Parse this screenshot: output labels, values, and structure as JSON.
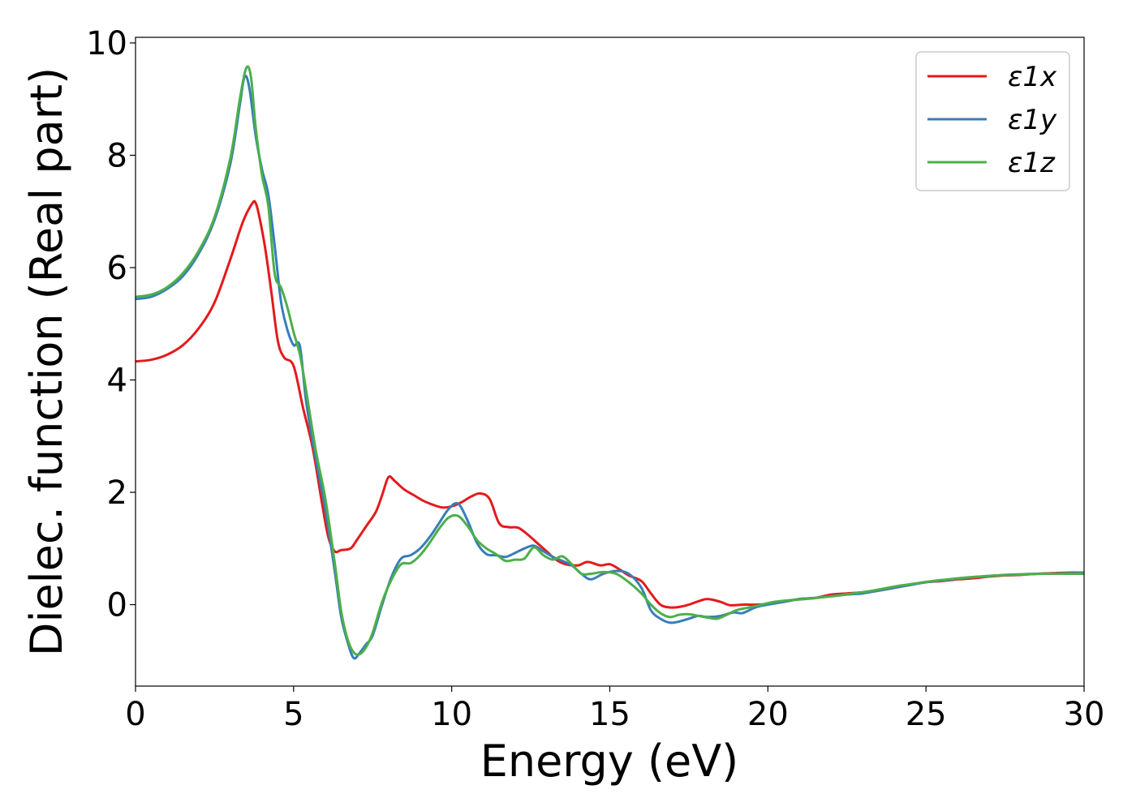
{
  "chart_data": {
    "type": "line",
    "xlabel": "Energy (eV)",
    "ylabel": "Dielec. function (Real part)",
    "xlim": [
      0,
      30
    ],
    "ylim": [
      -1.45,
      10.1
    ],
    "xticks": [
      0,
      5,
      10,
      15,
      20,
      25,
      30
    ],
    "yticks": [
      0,
      2,
      4,
      6,
      8,
      10
    ],
    "grid": false,
    "legend_position": "top-right",
    "series": [
      {
        "name": "ε1x",
        "color": "#e41a1c",
        "x": [
          0,
          0.5,
          1.0,
          1.5,
          2.0,
          2.5,
          3.0,
          3.4,
          3.7,
          3.8,
          3.9,
          4.1,
          4.3,
          4.5,
          4.7,
          5.0,
          5.3,
          5.6,
          5.9,
          6.1,
          6.3,
          6.5,
          6.8,
          7.0,
          7.3,
          7.6,
          7.8,
          8.0,
          8.2,
          8.5,
          8.8,
          9.1,
          9.4,
          9.7,
          10.0,
          10.3,
          10.6,
          10.9,
          11.2,
          11.5,
          11.8,
          12.1,
          12.4,
          12.7,
          13.0,
          13.3,
          13.6,
          14.0,
          14.3,
          14.7,
          15.0,
          15.3,
          15.6,
          16.0,
          16.3,
          16.6,
          16.9,
          17.2,
          17.5,
          17.8,
          18.1,
          18.5,
          18.8,
          19.2,
          19.6,
          20.0,
          20.5,
          21.0,
          21.5,
          22.0,
          22.5,
          23.0,
          23.5,
          24.0,
          24.5,
          25.0,
          25.5,
          26.0,
          26.5,
          27.0,
          27.5,
          28.0,
          28.5,
          29.0,
          29.5,
          30.0
        ],
        "y": [
          4.33,
          4.36,
          4.45,
          4.62,
          4.92,
          5.38,
          6.15,
          6.82,
          7.15,
          7.15,
          6.95,
          6.35,
          5.55,
          4.7,
          4.4,
          4.25,
          3.5,
          2.8,
          1.8,
          1.2,
          0.95,
          0.97,
          1.0,
          1.15,
          1.4,
          1.65,
          1.95,
          2.27,
          2.2,
          2.05,
          1.95,
          1.85,
          1.78,
          1.73,
          1.75,
          1.82,
          1.92,
          1.98,
          1.88,
          1.45,
          1.38,
          1.37,
          1.25,
          1.1,
          0.95,
          0.8,
          0.72,
          0.7,
          0.76,
          0.7,
          0.72,
          0.63,
          0.52,
          0.42,
          0.2,
          0.0,
          -0.05,
          -0.04,
          0.0,
          0.06,
          0.1,
          0.05,
          -0.01,
          0.0,
          0.0,
          0.01,
          0.05,
          0.1,
          0.12,
          0.18,
          0.2,
          0.22,
          0.25,
          0.3,
          0.35,
          0.4,
          0.42,
          0.45,
          0.47,
          0.5,
          0.52,
          0.53,
          0.55,
          0.56,
          0.57,
          0.57
        ]
      },
      {
        "name": "ε1y",
        "color": "#377eb8",
        "x": [
          0,
          0.5,
          1.0,
          1.5,
          2.0,
          2.5,
          3.0,
          3.3,
          3.45,
          3.6,
          3.8,
          4.0,
          4.2,
          4.4,
          4.6,
          4.8,
          5.0,
          5.2,
          5.4,
          5.7,
          6.0,
          6.3,
          6.5,
          6.7,
          6.9,
          7.1,
          7.3,
          7.5,
          7.8,
          8.1,
          8.4,
          8.7,
          9.0,
          9.3,
          9.6,
          9.9,
          10.2,
          10.5,
          10.8,
          11.1,
          11.4,
          11.7,
          12.0,
          12.3,
          12.6,
          12.9,
          13.2,
          13.5,
          13.8,
          14.1,
          14.4,
          14.8,
          15.2,
          15.6,
          16.0,
          16.3,
          16.6,
          16.9,
          17.2,
          17.5,
          17.8,
          18.1,
          18.5,
          18.9,
          19.2,
          19.6,
          20.0,
          20.5,
          21.0,
          21.5,
          22.0,
          22.5,
          23.0,
          23.5,
          24.0,
          24.5,
          25.0,
          25.5,
          26.0,
          26.5,
          27.0,
          27.5,
          28.0,
          28.5,
          29.0,
          29.5,
          30.0
        ],
        "y": [
          5.44,
          5.48,
          5.62,
          5.85,
          6.25,
          6.85,
          7.85,
          8.9,
          9.4,
          9.2,
          8.35,
          7.75,
          7.3,
          6.4,
          5.4,
          4.9,
          4.62,
          4.6,
          3.6,
          2.6,
          1.7,
          0.6,
          -0.2,
          -0.65,
          -0.95,
          -0.85,
          -0.7,
          -0.55,
          0.0,
          0.5,
          0.82,
          0.88,
          1.0,
          1.2,
          1.45,
          1.7,
          1.8,
          1.5,
          1.1,
          0.9,
          0.88,
          0.85,
          0.92,
          1.0,
          1.05,
          0.95,
          0.85,
          0.78,
          0.7,
          0.55,
          0.45,
          0.55,
          0.6,
          0.55,
          0.3,
          -0.1,
          -0.25,
          -0.32,
          -0.3,
          -0.25,
          -0.2,
          -0.22,
          -0.2,
          -0.14,
          -0.15,
          -0.05,
          0.0,
          0.05,
          0.1,
          0.12,
          0.15,
          0.18,
          0.2,
          0.25,
          0.3,
          0.35,
          0.4,
          0.43,
          0.46,
          0.49,
          0.51,
          0.53,
          0.54,
          0.55,
          0.55,
          0.56,
          0.56
        ]
      },
      {
        "name": "ε1z",
        "color": "#4daf4a",
        "x": [
          0,
          0.5,
          1.0,
          1.5,
          2.0,
          2.5,
          3.0,
          3.3,
          3.5,
          3.65,
          3.8,
          4.0,
          4.2,
          4.4,
          4.6,
          4.8,
          5.0,
          5.2,
          5.4,
          5.7,
          6.0,
          6.3,
          6.5,
          6.7,
          6.9,
          7.1,
          7.3,
          7.5,
          7.8,
          8.1,
          8.4,
          8.7,
          9.0,
          9.3,
          9.6,
          9.9,
          10.2,
          10.5,
          10.8,
          11.1,
          11.4,
          11.7,
          12.0,
          12.3,
          12.6,
          12.9,
          13.2,
          13.5,
          13.8,
          14.1,
          14.4,
          14.8,
          15.2,
          15.6,
          16.0,
          16.3,
          16.6,
          16.9,
          17.2,
          17.5,
          17.8,
          18.1,
          18.4,
          18.7,
          19.0,
          19.4,
          19.8,
          20.2,
          20.7,
          21.2,
          21.7,
          22.2,
          22.7,
          23.2,
          23.7,
          24.2,
          24.7,
          25.2,
          25.7,
          26.2,
          26.7,
          27.2,
          27.7,
          28.2,
          28.7,
          29.2,
          29.7,
          30.0
        ],
        "y": [
          5.48,
          5.52,
          5.65,
          5.9,
          6.3,
          6.9,
          7.95,
          9.0,
          9.55,
          9.4,
          8.5,
          7.65,
          7.1,
          5.9,
          5.65,
          5.3,
          4.85,
          4.45,
          3.8,
          2.75,
          1.9,
          0.75,
          -0.1,
          -0.6,
          -0.85,
          -0.88,
          -0.75,
          -0.5,
          0.05,
          0.45,
          0.72,
          0.74,
          0.88,
          1.1,
          1.35,
          1.55,
          1.58,
          1.4,
          1.15,
          1.0,
          0.9,
          0.78,
          0.8,
          0.82,
          1.02,
          0.88,
          0.8,
          0.86,
          0.72,
          0.55,
          0.55,
          0.58,
          0.55,
          0.4,
          0.2,
          0.0,
          -0.15,
          -0.22,
          -0.18,
          -0.17,
          -0.2,
          -0.23,
          -0.25,
          -0.18,
          -0.1,
          -0.05,
          0.0,
          0.05,
          0.08,
          0.1,
          0.13,
          0.16,
          0.2,
          0.24,
          0.29,
          0.34,
          0.38,
          0.42,
          0.45,
          0.48,
          0.5,
          0.52,
          0.53,
          0.54,
          0.55,
          0.55,
          0.55,
          0.55
        ]
      }
    ]
  }
}
